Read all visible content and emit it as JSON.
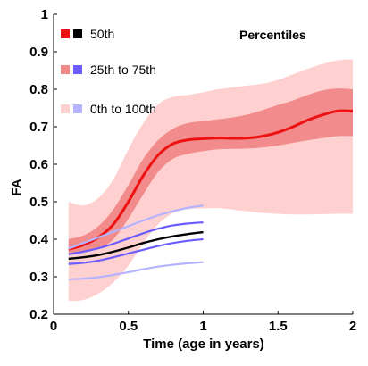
{
  "chart_data": {
    "type": "line",
    "xlabel": "Time (age in years)",
    "ylabel": "FA",
    "xlim": [
      0,
      2
    ],
    "ylim": [
      0.2,
      1
    ],
    "xticks": [
      "0",
      "0.5",
      "1",
      "1.5",
      "2"
    ],
    "yticks": [
      "0.2",
      "0.3",
      "0.4",
      "0.5",
      "0.6",
      "0.7",
      "0.8",
      "0.9",
      "1"
    ],
    "grid": false,
    "legend": {
      "title": "Percentiles",
      "entries": [
        {
          "label": "50th",
          "colors": [
            "#ee1111",
            "#000000"
          ]
        },
        {
          "label": "25th to 75th",
          "colors": [
            "#f08a8a",
            "#6a5cff"
          ]
        },
        {
          "label": "0th to 100th",
          "colors": [
            "#ffd0d0",
            "#b3b3ff"
          ]
        }
      ]
    },
    "groups": [
      {
        "colors": {
          "median": "#ee1111",
          "iqr": "#f28b8b",
          "range": "#ffd0d0"
        },
        "x": [
          0.1,
          0.2,
          0.3,
          0.4,
          0.5,
          0.6,
          0.7,
          0.8,
          0.9,
          1.0,
          1.1,
          1.2,
          1.3,
          1.4,
          1.5,
          1.6,
          1.7,
          1.8,
          1.9,
          2.0
        ],
        "median": [
          0.373,
          0.385,
          0.405,
          0.44,
          0.5,
          0.57,
          0.625,
          0.655,
          0.665,
          0.668,
          0.67,
          0.669,
          0.67,
          0.675,
          0.685,
          0.7,
          0.718,
          0.732,
          0.742,
          0.742
        ],
        "p25": [
          0.36,
          0.365,
          0.375,
          0.4,
          0.455,
          0.52,
          0.58,
          0.615,
          0.628,
          0.635,
          0.64,
          0.641,
          0.642,
          0.645,
          0.65,
          0.657,
          0.664,
          0.67,
          0.675,
          0.675
        ],
        "p75": [
          0.4,
          0.41,
          0.435,
          0.48,
          0.545,
          0.615,
          0.665,
          0.695,
          0.71,
          0.715,
          0.72,
          0.725,
          0.733,
          0.745,
          0.758,
          0.77,
          0.785,
          0.797,
          0.802,
          0.8
        ],
        "p0": [
          0.235,
          0.238,
          0.255,
          0.285,
          0.33,
          0.39,
          0.44,
          0.47,
          0.48,
          0.482,
          0.483,
          0.479,
          0.474,
          0.47,
          0.468,
          0.466,
          0.466,
          0.467,
          0.468,
          0.468
        ],
        "p100": [
          0.5,
          0.49,
          0.51,
          0.56,
          0.64,
          0.71,
          0.76,
          0.78,
          0.785,
          0.792,
          0.8,
          0.805,
          0.81,
          0.815,
          0.825,
          0.84,
          0.855,
          0.868,
          0.877,
          0.88
        ]
      },
      {
        "colors": {
          "median": "#000000",
          "iqr": "#6a5cff",
          "range": "#b3b3ff"
        },
        "x": [
          0.1,
          0.2,
          0.3,
          0.4,
          0.5,
          0.6,
          0.7,
          0.8,
          0.9,
          1.0
        ],
        "median": [
          0.348,
          0.352,
          0.358,
          0.367,
          0.378,
          0.39,
          0.4,
          0.408,
          0.414,
          0.419
        ],
        "p25": [
          0.334,
          0.337,
          0.343,
          0.352,
          0.362,
          0.372,
          0.382,
          0.39,
          0.396,
          0.4
        ],
        "p75": [
          0.36,
          0.367,
          0.376,
          0.388,
          0.402,
          0.416,
          0.428,
          0.437,
          0.442,
          0.445
        ],
        "p0": [
          0.293,
          0.295,
          0.299,
          0.305,
          0.312,
          0.32,
          0.327,
          0.332,
          0.336,
          0.339
        ],
        "p100": [
          0.375,
          0.39,
          0.405,
          0.42,
          0.435,
          0.45,
          0.464,
          0.475,
          0.484,
          0.49
        ]
      }
    ]
  }
}
